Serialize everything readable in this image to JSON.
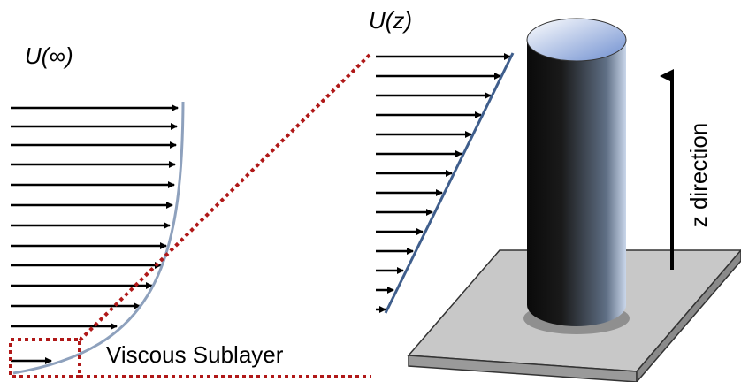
{
  "labels": {
    "u_inf": "U(∞)",
    "u_z": "U(z)",
    "z_direction": "z direction",
    "viscous_sublayer": "Viscous Sublayer"
  }
}
